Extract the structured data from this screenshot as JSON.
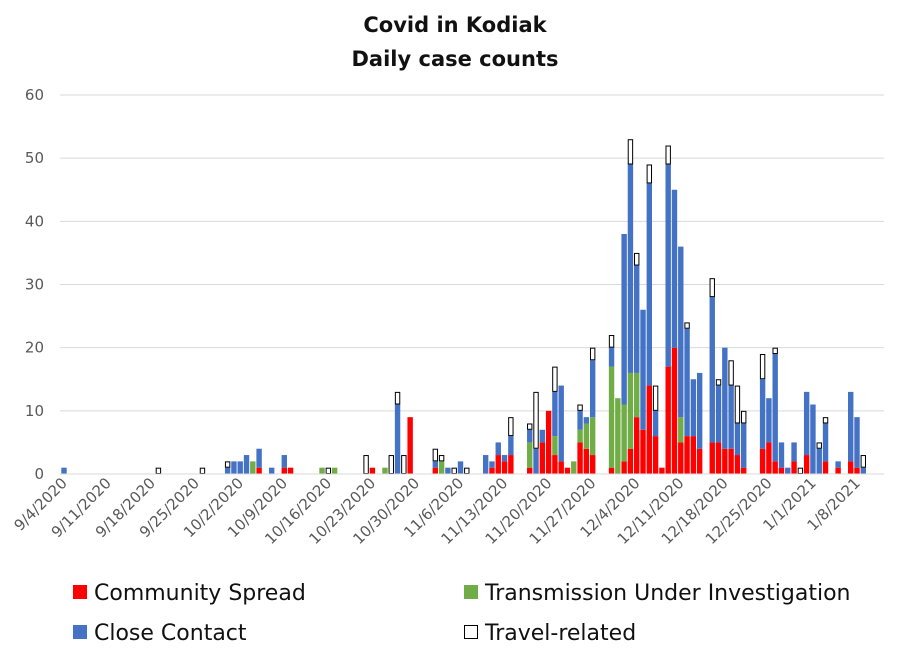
{
  "chart_data": {
    "type": "bar",
    "stacked": true,
    "title": [
      "Covid in Kodiak",
      "Daily case counts"
    ],
    "xlabel": "",
    "ylabel": "",
    "ylim": [
      0,
      60
    ],
    "yticks": [
      0,
      10,
      20,
      30,
      40,
      50,
      60
    ],
    "grid": true,
    "legend_position": "bottom",
    "x_start": "2020-09-04",
    "x_end": "2021-01-08",
    "xtick_labels": [
      "9/4/2020",
      "9/11/2020",
      "9/18/2020",
      "9/25/2020",
      "10/2/2020",
      "10/9/2020",
      "10/16/2020",
      "10/23/2020",
      "10/30/2020",
      "11/6/2020",
      "11/13/2020",
      "11/20/2020",
      "11/27/2020",
      "12/4/2020",
      "12/11/2020",
      "12/18/2020",
      "12/25/2020",
      "1/1/2021",
      "1/8/2021"
    ],
    "series": [
      {
        "name": "Community Spread",
        "color": "#ff0000"
      },
      {
        "name": "Transmission Under Investigation",
        "color": "#70ad47"
      },
      {
        "name": "Close Contact",
        "color": "#4472c4"
      },
      {
        "name": "Travel-related",
        "color": "#ffffff",
        "stroke": "#000000"
      }
    ],
    "days": [
      {
        "date": "2020-09-04",
        "cc": 1
      },
      {
        "date": "2020-09-19",
        "tr": 1
      },
      {
        "date": "2020-09-26",
        "tr": 1
      },
      {
        "date": "2020-09-30",
        "cc": 1,
        "tr": 1
      },
      {
        "date": "2020-10-01",
        "cc": 2
      },
      {
        "date": "2020-10-02",
        "cc": 2
      },
      {
        "date": "2020-10-03",
        "cc": 3
      },
      {
        "date": "2020-10-04",
        "tui": 2
      },
      {
        "date": "2020-10-05",
        "cs": 1,
        "cc": 3
      },
      {
        "date": "2020-10-07",
        "cc": 1
      },
      {
        "date": "2020-10-09",
        "cs": 1,
        "cc": 2
      },
      {
        "date": "2020-10-10",
        "cs": 1
      },
      {
        "date": "2020-10-15",
        "tui": 1
      },
      {
        "date": "2020-10-16",
        "tr": 1
      },
      {
        "date": "2020-10-17",
        "tui": 1
      },
      {
        "date": "2020-10-22",
        "tr": 3
      },
      {
        "date": "2020-10-23",
        "cs": 1
      },
      {
        "date": "2020-10-25",
        "tui": 1
      },
      {
        "date": "2020-10-26",
        "tr": 3
      },
      {
        "date": "2020-10-27",
        "cc": 11,
        "tr": 2
      },
      {
        "date": "2020-10-28",
        "tr": 3
      },
      {
        "date": "2020-10-29",
        "cs": 9
      },
      {
        "date": "2020-11-02",
        "cs": 1,
        "cc": 1,
        "tr": 2
      },
      {
        "date": "2020-11-03",
        "tui": 2,
        "tr": 1
      },
      {
        "date": "2020-11-04",
        "cc": 1
      },
      {
        "date": "2020-11-05",
        "tr": 1
      },
      {
        "date": "2020-11-06",
        "cc": 2
      },
      {
        "date": "2020-11-07",
        "tr": 1
      },
      {
        "date": "2020-11-10",
        "cc": 3
      },
      {
        "date": "2020-11-11",
        "cs": 1,
        "cc": 1
      },
      {
        "date": "2020-11-12",
        "cs": 3,
        "cc": 2
      },
      {
        "date": "2020-11-13",
        "cs": 2,
        "cc": 1
      },
      {
        "date": "2020-11-14",
        "cs": 3,
        "cc": 3,
        "tr": 3
      },
      {
        "date": "2020-11-17",
        "cs": 1,
        "tui": 4,
        "cc": 2,
        "tr": 1
      },
      {
        "date": "2020-11-18",
        "cc": 4,
        "tr": 9
      },
      {
        "date": "2020-11-19",
        "cs": 5,
        "cc": 2
      },
      {
        "date": "2020-11-20",
        "cs": 10
      },
      {
        "date": "2020-11-21",
        "cs": 3,
        "tui": 3,
        "cc": 7,
        "tr": 4
      },
      {
        "date": "2020-11-22",
        "cs": 2,
        "cc": 12
      },
      {
        "date": "2020-11-23",
        "cs": 1
      },
      {
        "date": "2020-11-24",
        "tui": 2
      },
      {
        "date": "2020-11-25",
        "cs": 5,
        "tui": 2,
        "cc": 3,
        "tr": 1
      },
      {
        "date": "2020-11-26",
        "cs": 4,
        "tui": 4,
        "cc": 1
      },
      {
        "date": "2020-11-27",
        "cs": 3,
        "tui": 6,
        "cc": 9,
        "tr": 2
      },
      {
        "date": "2020-11-30",
        "cs": 1,
        "tui": 16,
        "cc": 3,
        "tr": 2
      },
      {
        "date": "2020-12-01",
        "tui": 12
      },
      {
        "date": "2020-12-02",
        "cs": 2,
        "tui": 9,
        "cc": 27
      },
      {
        "date": "2020-12-03",
        "cs": 4,
        "tui": 12,
        "cc": 33,
        "tr": 4
      },
      {
        "date": "2020-12-04",
        "cs": 9,
        "tui": 7,
        "cc": 17,
        "tr": 2
      },
      {
        "date": "2020-12-05",
        "cs": 7,
        "cc": 19
      },
      {
        "date": "2020-12-06",
        "cs": 14,
        "cc": 32,
        "tr": 3
      },
      {
        "date": "2020-12-07",
        "cs": 6,
        "cc": 4,
        "tr": 4
      },
      {
        "date": "2020-12-08",
        "cs": 1
      },
      {
        "date": "2020-12-09",
        "cs": 17,
        "cc": 32,
        "tr": 3
      },
      {
        "date": "2020-12-10",
        "cs": 20,
        "cc": 25
      },
      {
        "date": "2020-12-11",
        "cs": 5,
        "tui": 4,
        "cc": 27
      },
      {
        "date": "2020-12-12",
        "cs": 6,
        "cc": 17,
        "tr": 1
      },
      {
        "date": "2020-12-13",
        "cs": 6,
        "cc": 9
      },
      {
        "date": "2020-12-14",
        "cs": 4,
        "cc": 12
      },
      {
        "date": "2020-12-16",
        "cs": 5,
        "cc": 23,
        "tr": 3
      },
      {
        "date": "2020-12-17",
        "cs": 5,
        "cc": 9,
        "tr": 1
      },
      {
        "date": "2020-12-18",
        "cs": 4,
        "cc": 16
      },
      {
        "date": "2020-12-19",
        "cs": 4,
        "cc": 10,
        "tr": 4
      },
      {
        "date": "2020-12-20",
        "cs": 3,
        "cc": 5,
        "tr": 6
      },
      {
        "date": "2020-12-21",
        "cs": 1,
        "cc": 7,
        "tr": 2
      },
      {
        "date": "2020-12-24",
        "cs": 4,
        "cc": 11,
        "tr": 4
      },
      {
        "date": "2020-12-25",
        "cs": 5,
        "cc": 7
      },
      {
        "date": "2020-12-26",
        "cs": 2,
        "cc": 17,
        "tr": 1
      },
      {
        "date": "2020-12-27",
        "cs": 1,
        "cc": 4
      },
      {
        "date": "2020-12-28",
        "cc": 1
      },
      {
        "date": "2020-12-29",
        "cs": 2,
        "cc": 3
      },
      {
        "date": "2020-12-30",
        "tr": 1
      },
      {
        "date": "2020-12-31",
        "cs": 3,
        "cc": 10
      },
      {
        "date": "2021-01-01",
        "cc": 11
      },
      {
        "date": "2021-01-02",
        "cc": 4,
        "tr": 1
      },
      {
        "date": "2021-01-03",
        "cs": 2,
        "cc": 6,
        "tr": 1
      },
      {
        "date": "2021-01-05",
        "cs": 1,
        "cc": 1
      },
      {
        "date": "2021-01-07",
        "cs": 2,
        "cc": 11
      },
      {
        "date": "2021-01-08",
        "cs": 1,
        "cc": 8
      },
      {
        "date": "2021-01-09",
        "cc": 1,
        "tr": 2
      }
    ]
  }
}
